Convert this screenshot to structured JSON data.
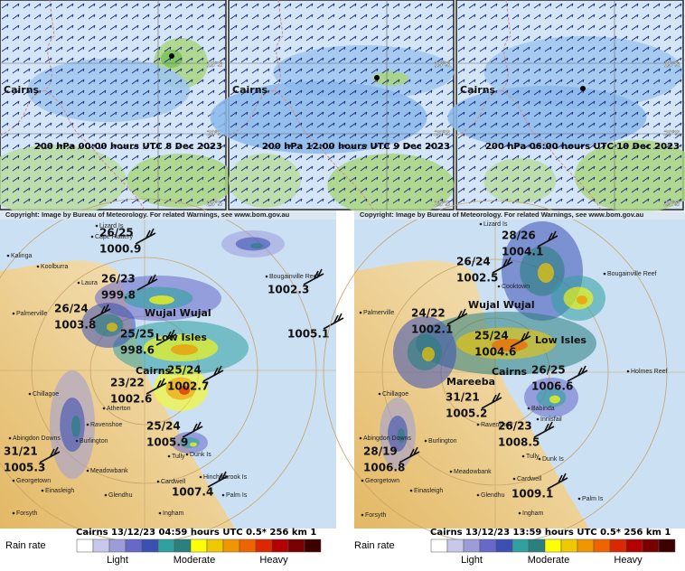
{
  "top_panels": [
    {
      "place": "Cairns",
      "caption": "200 hPa  00:00 hours UTC 8 Dec 2023",
      "lat_labels": [
        "15°S",
        "20°S",
        "25°S"
      ]
    },
    {
      "place": "Cairns",
      "caption": "200 hPa  12:00 hours UTC 9 Dec 2023",
      "lat_labels": [
        "15°S",
        "20°S",
        "25°S"
      ]
    },
    {
      "place": "Cairns",
      "caption": "200 hPa  06:00 hours UTC 10 Dec 2023",
      "lat_labels": [
        "15°S",
        "20°S",
        "25°S"
      ]
    }
  ],
  "radar_panels": [
    {
      "copyright": "Copyright: Image by Bureau of Meteorology. For related Warnings, see www.bom.gov.au",
      "caption": "Cairns  13/12/23  04:59 hours UTC  0.5*  256 km 1",
      "legend": {
        "title": "Rain rate",
        "labels": [
          "Light",
          "Moderate",
          "Heavy"
        ]
      },
      "places": [
        "Lizard Is",
        "Cape Flattery",
        "Kalinga",
        "Koolburra",
        "Laura",
        "Bougainville Reef",
        "Palmerville",
        "Chillagoe",
        "Atherton",
        "Ravenshoe",
        "Burlington",
        "Abingdon Downs",
        "Tully",
        "Dunk Is",
        "Meadowbank",
        "Georgetown",
        "Einasleigh",
        "Cardwell",
        "Hinchinbrook Is",
        "Glendhu",
        "Ingham",
        "Forsyth",
        "Palm Is"
      ],
      "key_places": [
        "Wujal Wujal",
        "Low Isles",
        "Cairns"
      ],
      "observations": [
        {
          "temp": "26/25",
          "pressure": "1000.9"
        },
        {
          "temp": "26/23",
          "pressure": "999.8"
        },
        {
          "temp": "26/24",
          "pressure": "1003.8"
        },
        {
          "temp": "25/25",
          "pressure": "998.6"
        },
        {
          "temp": "25/24",
          "pressure": "1002.7"
        },
        {
          "temp": "23/22",
          "pressure": "1002.6"
        },
        {
          "temp": "25/24",
          "pressure": "1005.9"
        },
        {
          "temp": "31/21",
          "pressure": "1005.3"
        },
        {
          "pressure": "1002.3"
        },
        {
          "pressure": "1005.1"
        },
        {
          "pressure": "1007.4"
        }
      ]
    },
    {
      "copyright": "Copyright: Image by Bureau of Meteorology. For related Warnings, see www.bom.gov.au",
      "caption": "Cairns  13/12/23  13:59 hours UTC  0.5*  256 km 1",
      "legend": {
        "title": "Rain rate",
        "labels": [
          "Light",
          "Moderate",
          "Heavy"
        ]
      },
      "places": [
        "Lizard Is",
        "Cooktown",
        "Bougainville Reef",
        "Palmerville",
        "Holmes Reef",
        "Chillagoe",
        "Babinda",
        "Innisfail",
        "Ravenshoe",
        "Burlington",
        "Abingdon Downs",
        "Tully",
        "Dunk Is",
        "Meadowbank",
        "Georgetown",
        "Einasleigh",
        "Cardwell",
        "Glendhu",
        "Ingham",
        "Forsyth",
        "Palm Is"
      ],
      "key_places": [
        "Wujal Wujal",
        "Low Isles",
        "Cairns",
        "Mareeba"
      ],
      "observations": [
        {
          "temp": "28/26",
          "pressure": "1004.1"
        },
        {
          "temp": "26/24",
          "pressure": "1002.5"
        },
        {
          "temp": "24/22",
          "pressure": "1002.1"
        },
        {
          "temp": "25/24",
          "pressure": "1004.6"
        },
        {
          "temp": "26/25",
          "pressure": "1006.6"
        },
        {
          "temp": "31/21",
          "pressure": "1005.2"
        },
        {
          "temp": "26/23",
          "pressure": "1008.5"
        },
        {
          "temp": "28/19",
          "pressure": "1006.8"
        },
        {
          "pressure": "1009.1"
        }
      ]
    }
  ]
}
